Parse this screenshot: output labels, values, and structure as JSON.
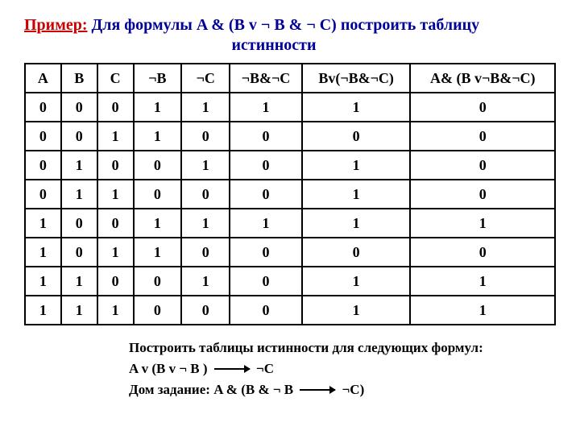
{
  "title": {
    "prefix": "Пример:",
    "line1_part1": " Для формулы  ",
    "formula": "A & (B v ¬ B & ¬ C)",
    "line1_part2": "  построить таблицу",
    "line2": "истинности"
  },
  "table": {
    "headers": [
      "A",
      "B",
      "C",
      "¬B",
      "¬C",
      "¬B&¬C",
      "Bv(¬B&¬C)",
      "A& (B v¬B&¬C)"
    ],
    "rows": [
      [
        "0",
        "0",
        "0",
        "1",
        "1",
        "1",
        "1",
        "0"
      ],
      [
        "0",
        "0",
        "1",
        "1",
        "0",
        "0",
        "0",
        "0"
      ],
      [
        "0",
        "1",
        "0",
        "0",
        "1",
        "0",
        "1",
        "0"
      ],
      [
        "0",
        "1",
        "1",
        "0",
        "0",
        "0",
        "1",
        "0"
      ],
      [
        "1",
        "0",
        "0",
        "1",
        "1",
        "1",
        "1",
        "1"
      ],
      [
        "1",
        "0",
        "1",
        "1",
        "0",
        "0",
        "0",
        "0"
      ],
      [
        "1",
        "1",
        "0",
        "0",
        "1",
        "0",
        "1",
        "1"
      ],
      [
        "1",
        "1",
        "1",
        "0",
        "0",
        "0",
        "1",
        "1"
      ]
    ],
    "col_classes": [
      "narrow",
      "narrow",
      "narrow",
      "mid",
      "mid",
      "wide1",
      "wide2",
      "wide3"
    ],
    "border_color": "#000000",
    "header_fontsize": 18,
    "cell_fontsize": 18
  },
  "below": {
    "task_intro": "Построить таблицы истинности для следующих формул:",
    "formula1_left": "A v (B v ¬ B )",
    "formula1_right": "¬C",
    "homework_label": "Дом задание: ",
    "formula2_left": "A & (B & ¬ B",
    "formula2_right": "¬C)"
  },
  "colors": {
    "red": "#cc0000",
    "blue": "#000099",
    "text": "#000000",
    "background": "#ffffff"
  }
}
